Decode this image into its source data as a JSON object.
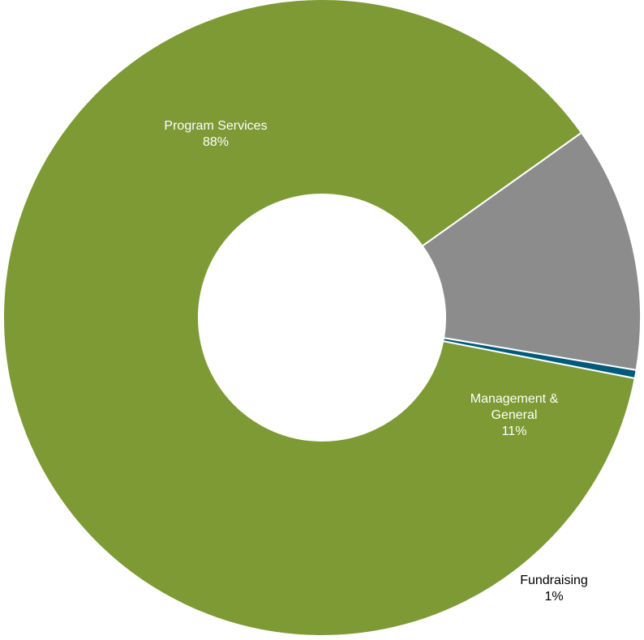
{
  "chart_data": {
    "type": "pie",
    "title": "",
    "donut": true,
    "slices": [
      {
        "label_lines": [
          "Program Services"
        ],
        "value": 88,
        "pct_text": "88%",
        "color": "#7d9a34",
        "label_color": "#ffffff"
      },
      {
        "label_lines": [
          "Management &",
          "General"
        ],
        "value": 11,
        "pct_text": "11%",
        "color": "#005a7c",
        "label_color": "#ffffff"
      },
      {
        "label_lines": [
          "Fundraising"
        ],
        "value": 1,
        "pct_text": "1%",
        "color": "#8c8c8c",
        "label_color": "#000000"
      }
    ]
  }
}
